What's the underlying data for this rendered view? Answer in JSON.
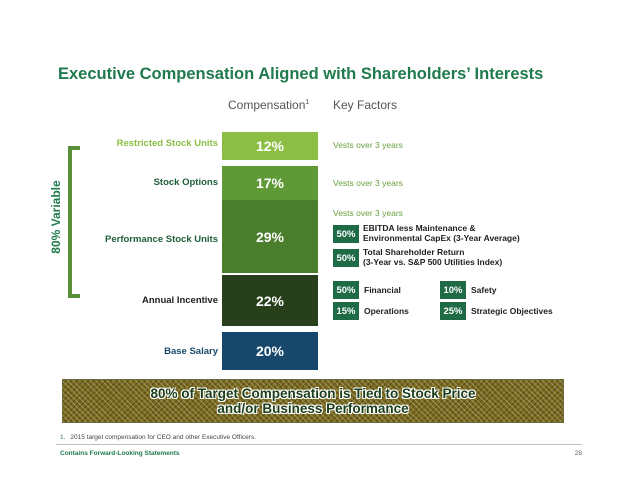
{
  "title": "Executive Compensation Aligned with Shareholders’ Interests",
  "columns": {
    "compensation": "Compensation",
    "compensation_sup": "1",
    "key_factors": "Key Factors"
  },
  "variable_label": "80% Variable",
  "components": [
    {
      "label": "Restricted Stock Units",
      "percent": "12%",
      "value": 12,
      "bar_color": "#8cbe45",
      "label_color": "#8cbe45"
    },
    {
      "label": "Stock Options",
      "percent": "17%",
      "value": 17,
      "bar_color": "#5f9a36",
      "label_color": "#1f5e3a"
    },
    {
      "label": "Performance Stock Units",
      "percent": "29%",
      "value": 29,
      "bar_color": "#4a7d2c",
      "label_color": "#1f5e3a"
    },
    {
      "label": "Annual Incentive",
      "percent": "22%",
      "value": 22,
      "bar_color": "#27401b",
      "label_color": "#1e1e1e"
    },
    {
      "label": "Base Salary",
      "percent": "20%",
      "value": 20,
      "bar_color": "#17476b",
      "label_color": "#1a4a6b"
    }
  ],
  "key_factors": {
    "rsu_vesting": "Vests over 3 years",
    "options_vesting": "Vests over 3 years",
    "psu_vesting": "Vests over 3 years",
    "psu_metrics": [
      {
        "pct": "50%",
        "line1": "EBITDA less Maintenance &",
        "line2": "Environmental CapEx (3-Year Average)"
      },
      {
        "pct": "50%",
        "line1": "Total Shareholder Return",
        "line2": "(3-Year vs. S&P 500 Utilities Index)"
      }
    ],
    "incentive_metrics": [
      {
        "pct": "50%",
        "label": "Financial"
      },
      {
        "pct": "10%",
        "label": "Safety"
      },
      {
        "pct": "15%",
        "label": "Operations"
      },
      {
        "pct": "25%",
        "label": "Strategic Objectives"
      }
    ]
  },
  "banner": {
    "line1": "80% of Target Compensation is Tied to Stock Price",
    "line2": "and/or Business Performance"
  },
  "footnote": {
    "number": "1.",
    "text": "2015 target compensation for CEO and other Executive Officers."
  },
  "footer": {
    "left": "Contains Forward-Looking Statements",
    "page": "28"
  }
}
